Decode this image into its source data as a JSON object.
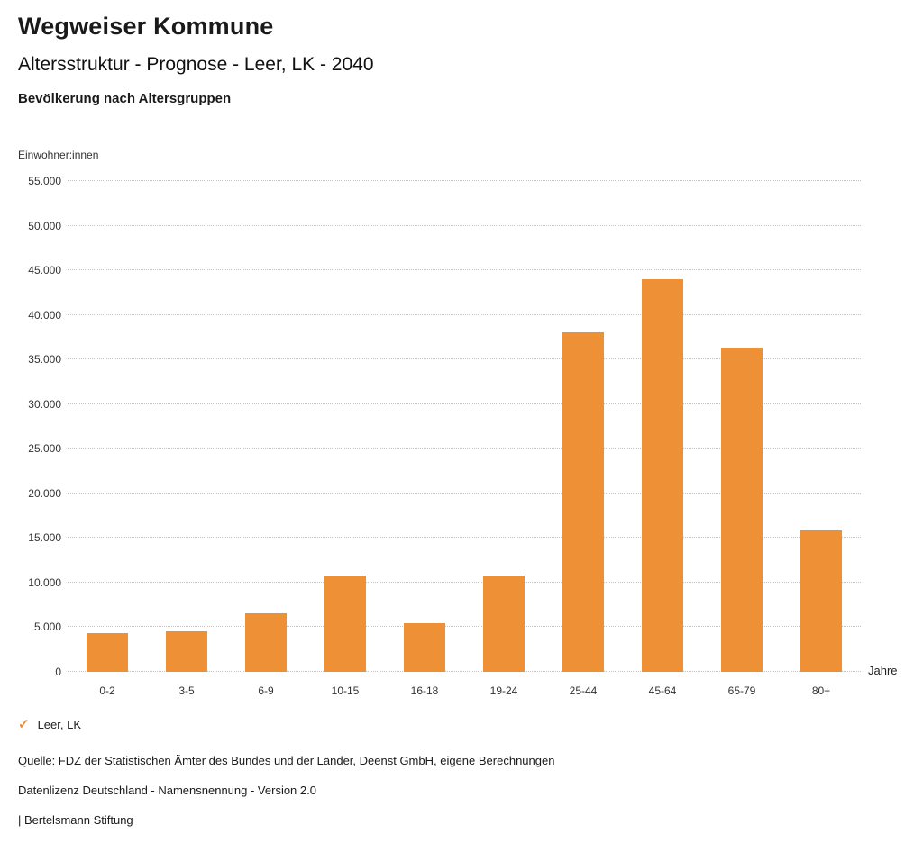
{
  "header": {
    "title": "Wegweiser Kommune",
    "subtitle": "Altersstruktur - Prognose - Leer, LK - 2040",
    "chart_title": "Bevölkerung nach Altersgruppen"
  },
  "chart_data": {
    "type": "bar",
    "title": "Bevölkerung nach Altersgruppen",
    "categories": [
      "0-2",
      "3-5",
      "6-9",
      "10-15",
      "16-18",
      "19-24",
      "25-44",
      "45-64",
      "65-79",
      "80+"
    ],
    "values": [
      4300,
      4500,
      6600,
      10800,
      5500,
      10800,
      38000,
      44000,
      36300,
      15800
    ],
    "series_name": "Leer, LK",
    "xlabel": "Jahre",
    "ylabel": "Einwohner:innen",
    "ylim": [
      0,
      55000
    ],
    "ytick_step": 5000,
    "grid": true,
    "legend_position": "bottom-left",
    "bar_color": "#ED9036",
    "number_format": "de-thousands-dot"
  },
  "legend": {
    "items": [
      {
        "label": "Leer, LK",
        "color": "#ED9036",
        "marker": "check"
      }
    ]
  },
  "footer": {
    "source": "Quelle: FDZ der Statistischen Ämter des Bundes und der Länder, Deenst GmbH, eigene Berechnungen",
    "license": "Datenlizenz Deutschland - Namensnennung - Version 2.0",
    "attribution": "| Bertelsmann Stiftung"
  }
}
